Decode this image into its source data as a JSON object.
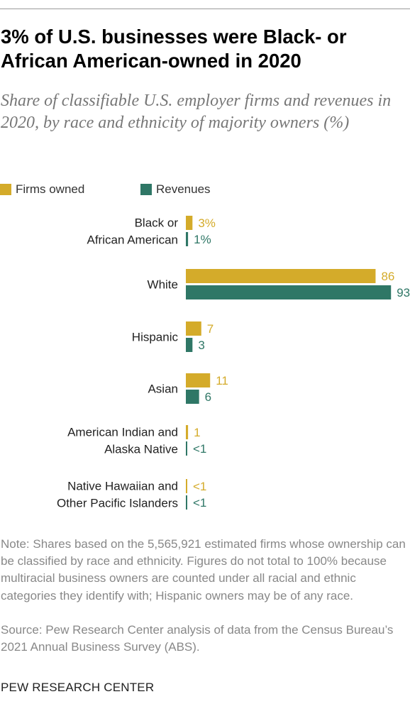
{
  "title": "3% of U.S. businesses were Black- or African American-owned in 2020",
  "subtitle": "Share of classifiable U.S. employer firms and revenues in 2020, by race and ethnicity of majority owners (%)",
  "legend": [
    {
      "label": "Firms owned",
      "color": "#d4ab2a"
    },
    {
      "label": "Revenues",
      "color": "#2f7766"
    }
  ],
  "colors": {
    "firms": "#d4ab2a",
    "revenues": "#2f7766",
    "category_text": "#222222"
  },
  "chart_data": {
    "type": "bar",
    "orientation": "horizontal",
    "categories": [
      [
        "Black or",
        "African American"
      ],
      [
        "White"
      ],
      [
        "Hispanic"
      ],
      [
        "Asian"
      ],
      [
        "American Indian and",
        "Alaska Native"
      ],
      [
        "Native Hawaiian and",
        "Other Pacific Islanders"
      ]
    ],
    "series": [
      {
        "name": "Firms owned",
        "values": [
          3,
          86,
          7,
          11,
          1,
          0.3
        ],
        "labels": [
          "3%",
          "86",
          "7",
          "11",
          "1",
          "<1"
        ]
      },
      {
        "name": "Revenues",
        "values": [
          1,
          93,
          3,
          6,
          0.3,
          0.3
        ],
        "labels": [
          "1%",
          "93",
          "3",
          "6",
          "<1",
          "<1"
        ]
      }
    ],
    "xlim": [
      0,
      100
    ],
    "grid": false,
    "legend_position": "top-left"
  },
  "note": "Note: Shares based on the 5,565,921 estimated firms whose ownership can be classified by race and ethnicity. Figures do not total to 100% because multiracial business owners are counted under all racial and ethnic categories they identify with; Hispanic owners may be of any race.",
  "source": "Source: Pew Research Center analysis of data from the Census Bureau’s 2021 Annual Business Survey (ABS).",
  "organization": "PEW RESEARCH CENTER"
}
